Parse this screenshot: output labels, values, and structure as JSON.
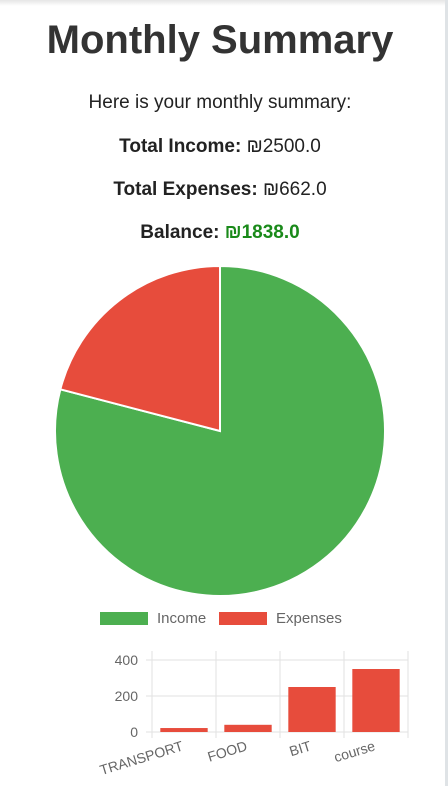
{
  "page": {
    "title": "Monthly Summary",
    "intro": "Here is your monthly summary:",
    "income_label": "Total Income:",
    "income_value": "₪2500.0",
    "expenses_label": "Total Expenses:",
    "expenses_value": "₪662.0",
    "balance_label": "Balance:",
    "balance_value": "₪1838.0"
  },
  "colors": {
    "income": "#4caf50",
    "expenses": "#e74c3c",
    "balance_text": "#1a8a1a"
  },
  "chart_data": [
    {
      "type": "pie",
      "categories": [
        "Income",
        "Expenses"
      ],
      "values": [
        2500,
        662
      ],
      "legend": "bottom",
      "colors": [
        "#4caf50",
        "#e74c3c"
      ]
    },
    {
      "type": "bar",
      "categories": [
        "TRANSPORT",
        "FOOD",
        "BIT",
        "course"
      ],
      "values": [
        22,
        40,
        250,
        350
      ],
      "ylim": [
        0,
        450
      ],
      "yticks": [
        "0",
        "200",
        "400"
      ],
      "grid": true,
      "color": "#e74c3c"
    }
  ]
}
